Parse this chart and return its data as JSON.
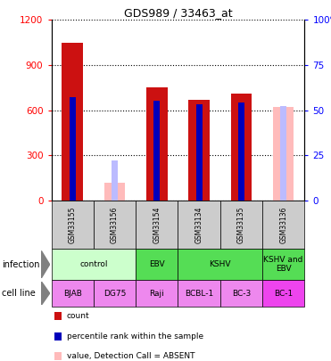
{
  "title": "GDS989 / 33463_at",
  "samples": [
    "GSM33155",
    "GSM33156",
    "GSM33154",
    "GSM33134",
    "GSM33135",
    "GSM33136"
  ],
  "count_values": [
    1050,
    null,
    750,
    670,
    710,
    null
  ],
  "rank_values": [
    57,
    null,
    55,
    53,
    54,
    null
  ],
  "absent_count_values": [
    null,
    120,
    null,
    null,
    null,
    620
  ],
  "absent_rank_values": [
    null,
    22,
    null,
    null,
    null,
    52
  ],
  "ylim_left": [
    0,
    1200
  ],
  "ylim_right": [
    0,
    100
  ],
  "yticks_left": [
    0,
    300,
    600,
    900,
    1200
  ],
  "yticks_right_labels": [
    "0",
    "25",
    "50",
    "75",
    "100%"
  ],
  "yticks_right_vals": [
    0,
    25,
    50,
    75,
    100
  ],
  "infection_groups": [
    {
      "label": "control",
      "start": 0,
      "end": 2,
      "color": "#ccffcc"
    },
    {
      "label": "EBV",
      "start": 2,
      "end": 3,
      "color": "#55dd55"
    },
    {
      "label": "KSHV",
      "start": 3,
      "end": 5,
      "color": "#55dd55"
    },
    {
      "label": "KSHV and\nEBV",
      "start": 5,
      "end": 6,
      "color": "#55dd55"
    }
  ],
  "cell_lines": [
    "BJAB",
    "DG75",
    "Raji",
    "BCBL-1",
    "BC-3",
    "BC-1"
  ],
  "cell_line_colors": [
    "#ee88ee",
    "#ee88ee",
    "#ee88ee",
    "#ee88ee",
    "#ee88ee",
    "#ee44ee"
  ],
  "bar_color": "#cc1111",
  "rank_color": "#0000bb",
  "absent_bar_color": "#ffbbbb",
  "absent_rank_color": "#bbbbff",
  "sample_bg_color": "#cccccc"
}
